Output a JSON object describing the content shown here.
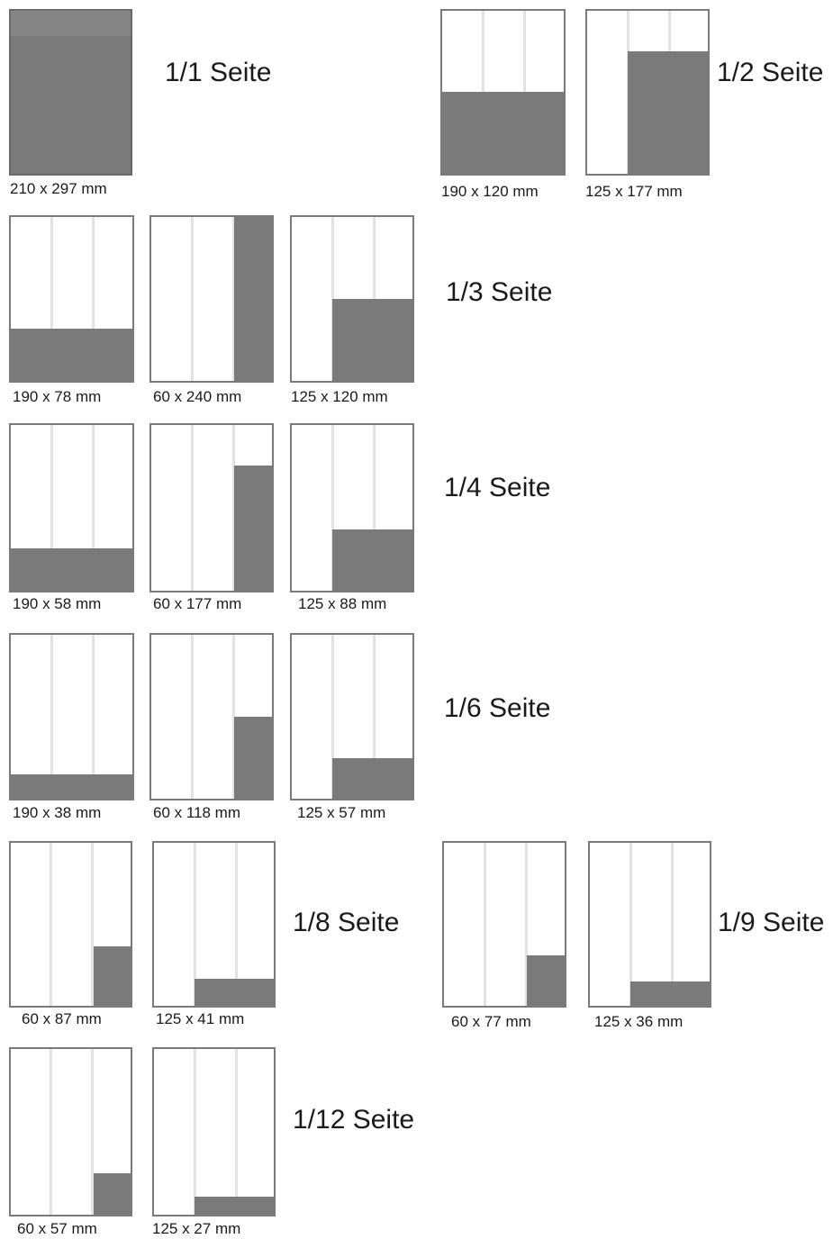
{
  "groups": [
    {
      "label": "1/1 Seite",
      "items": [
        {
          "dim": "210 x 297 mm"
        }
      ]
    },
    {
      "label": "1/2 Seite",
      "items": [
        {
          "dim": "190 x 120 mm"
        },
        {
          "dim": "125 x 177 mm"
        }
      ]
    },
    {
      "label": "1/3 Seite",
      "items": [
        {
          "dim": "190 x 78 mm"
        },
        {
          "dim": "60 x 240 mm"
        },
        {
          "dim": "125 x 120 mm"
        }
      ]
    },
    {
      "label": "1/4 Seite",
      "items": [
        {
          "dim": "190 x 58 mm"
        },
        {
          "dim": "60 x 177 mm"
        },
        {
          "dim": "125 x 88 mm"
        }
      ]
    },
    {
      "label": "1/6 Seite",
      "items": [
        {
          "dim": "190 x 38 mm"
        },
        {
          "dim": "60 x 118 mm"
        },
        {
          "dim": "125 x 57 mm"
        }
      ]
    },
    {
      "label": "1/8 Seite",
      "items": [
        {
          "dim": "60 x 87 mm"
        },
        {
          "dim": "125 x 41 mm"
        }
      ]
    },
    {
      "label": "1/9 Seite",
      "items": [
        {
          "dim": "60 x 77 mm"
        },
        {
          "dim": "125 x 36 mm"
        }
      ]
    },
    {
      "label": "1/12 Seite",
      "items": [
        {
          "dim": "60 x 57 mm"
        },
        {
          "dim": "125 x 27 mm"
        }
      ]
    }
  ],
  "colors": {
    "ad_fill": "#7a7a7a",
    "page_border": "#7a7a7a",
    "column_line": "#e2e2e2"
  }
}
